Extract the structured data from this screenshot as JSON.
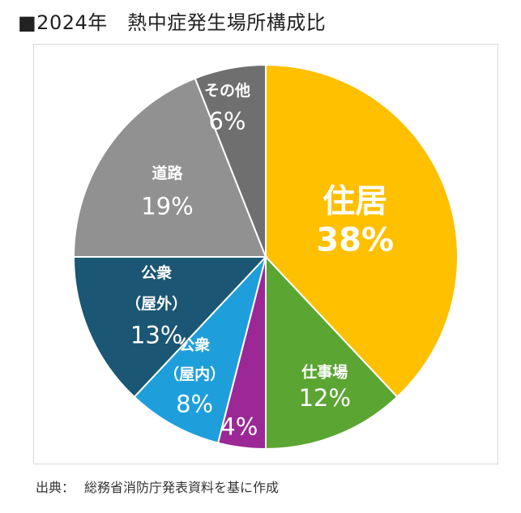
{
  "title": "■2024年　熱中症発生場所構成比",
  "source": {
    "label": "出典：",
    "text": "総務省消防庁発表資料を基に作成"
  },
  "chart_data": {
    "type": "pie",
    "title": "■2024年　熱中症発生場所構成比",
    "start_angle_deg": 0,
    "direction": "clockwise",
    "slices": [
      {
        "lines": [
          "住居"
        ],
        "pct_label": "38%",
        "value": 38,
        "color": "#FFC000"
      },
      {
        "lines": [
          "仕事場"
        ],
        "pct_label": "12%",
        "value": 12,
        "color": "#5BA532"
      },
      {
        "lines": [],
        "pct_label": "4%",
        "value": 4,
        "color": "#9B2896"
      },
      {
        "lines": [
          "公衆",
          "（屋内）"
        ],
        "pct_label": "8%",
        "value": 8,
        "color": "#1E9FDB"
      },
      {
        "lines": [
          "公衆",
          "（屋外）"
        ],
        "pct_label": "13%",
        "value": 13,
        "color": "#1B5674"
      },
      {
        "lines": [
          "道路"
        ],
        "pct_label": "19%",
        "value": 19,
        "color": "#919191"
      },
      {
        "lines": [
          "その他"
        ],
        "pct_label": "6%",
        "value": 6,
        "color": "#6F6F6F"
      }
    ]
  }
}
